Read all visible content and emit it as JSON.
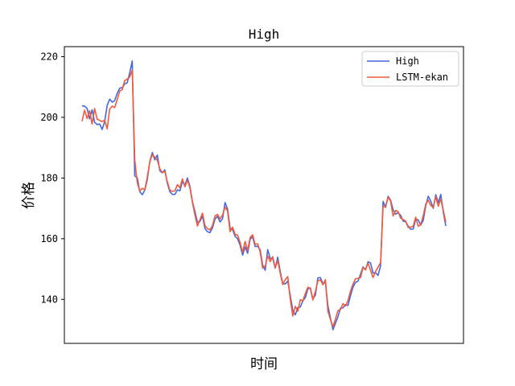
{
  "chart_data": {
    "type": "line",
    "title": "High",
    "xlabel": "时间",
    "ylabel": "价格",
    "ylim": [
      125.5,
      223.3
    ],
    "yticks": [
      140,
      160,
      180,
      200,
      220
    ],
    "xticks": [],
    "grid": false,
    "legend_position": "top-right",
    "series": [
      {
        "name": "High",
        "color": "#4169e1",
        "values": [
          203.8,
          203.7,
          202.9,
          199.5,
          202.5,
          198.4,
          197.6,
          197.8,
          196.0,
          198.6,
          203.9,
          206.0,
          205.0,
          205.5,
          207.9,
          209.6,
          209.8,
          211.0,
          211.4,
          214.7,
          218.6,
          180.7,
          180.1,
          175.5,
          174.5,
          176.0,
          179.5,
          185.5,
          188.4,
          186.0,
          187.6,
          182.4,
          181.7,
          182.7,
          178.2,
          175.5,
          174.6,
          174.6,
          176.1,
          175.8,
          178.9,
          177.6,
          180.0,
          177.2,
          172.2,
          168.9,
          165.4,
          165.7,
          167.5,
          163.3,
          162.3,
          162.0,
          163.6,
          166.5,
          167.4,
          165.5,
          166.6,
          171.9,
          169.8,
          163.5,
          163.0,
          160.8,
          160.0,
          157.8,
          154.6,
          157.3,
          155.2,
          159.8,
          160.6,
          157.4,
          157.5,
          156.3,
          151.3,
          149.6,
          156.4,
          153.5,
          153.5,
          150.3,
          153.9,
          149.2,
          145.2,
          145.1,
          146.0,
          141.3,
          136.4,
          134.9,
          137.3,
          137.5,
          139.5,
          140.6,
          143.4,
          143.8,
          140.1,
          141.4,
          147.1,
          147.2,
          145.2,
          145.7,
          137.9,
          133.9,
          130.0,
          132.1,
          134.3,
          137.1,
          137.2,
          138.3,
          138.0,
          141.2,
          144.0,
          145.6,
          146.0,
          148.3,
          150.7,
          149.8,
          152.4,
          152.0,
          148.7,
          148.8,
          147.9,
          151.1,
          172.3,
          170.3,
          174.0,
          172.7,
          169.5,
          168.1,
          168.6,
          167.7,
          165.8,
          165.6,
          164.2,
          163.1,
          163.2,
          166.4,
          166.2,
          164.5,
          166.0,
          170.8,
          174.0,
          172.4,
          170.0,
          174.5,
          171.9,
          174.6,
          168.8,
          164.2
        ]
      },
      {
        "name": "LSTM-ekan",
        "color": "#f4593b",
        "values": [
          198.7,
          202.4,
          199.6,
          202.2,
          197.8,
          202.9,
          199.4,
          199.0,
          198.6,
          199.1,
          196.2,
          202.7,
          203.7,
          203.2,
          205.8,
          208.7,
          209.1,
          212.1,
          212.6,
          213.3,
          215.6,
          186.0,
          178.5,
          175.7,
          176.6,
          176.1,
          180.3,
          185.3,
          187.7,
          186.9,
          185.9,
          183.0,
          181.8,
          182.2,
          178.7,
          176.0,
          175.6,
          175.8,
          177.8,
          176.8,
          179.7,
          177.1,
          179.3,
          176.8,
          171.9,
          167.8,
          164.2,
          166.3,
          168.4,
          164.3,
          163.3,
          162.9,
          164.4,
          167.5,
          168.0,
          166.5,
          167.8,
          170.4,
          169.2,
          162.3,
          163.8,
          161.4,
          161.2,
          158.7,
          155.5,
          159.1,
          156.1,
          160.4,
          161.3,
          158.1,
          158.3,
          155.6,
          150.3,
          150.9,
          154.3,
          152.5,
          154.1,
          150.4,
          152.8,
          148.6,
          144.9,
          146.5,
          147.5,
          140.1,
          134.5,
          137.7,
          136.1,
          139.9,
          139.5,
          141.9,
          144.0,
          143.6,
          139.8,
          142.6,
          146.1,
          146.5,
          144.8,
          146.5,
          136.1,
          133.4,
          130.9,
          133.5,
          136.3,
          136.6,
          138.6,
          137.8,
          139.6,
          142.7,
          145.0,
          146.8,
          146.9,
          147.2,
          150.5,
          149.7,
          152.0,
          149.6,
          147.2,
          149.2,
          150.6,
          152.1,
          170.6,
          170.6,
          173.7,
          172.4,
          167.5,
          169.3,
          168.9,
          166.8,
          166.3,
          165.8,
          163.7,
          163.8,
          164.1,
          167.1,
          164.1,
          164.6,
          167.5,
          171.4,
          172.7,
          171.0,
          170.3,
          173.9,
          170.7,
          173.1,
          169.4,
          165.4
        ]
      }
    ]
  }
}
